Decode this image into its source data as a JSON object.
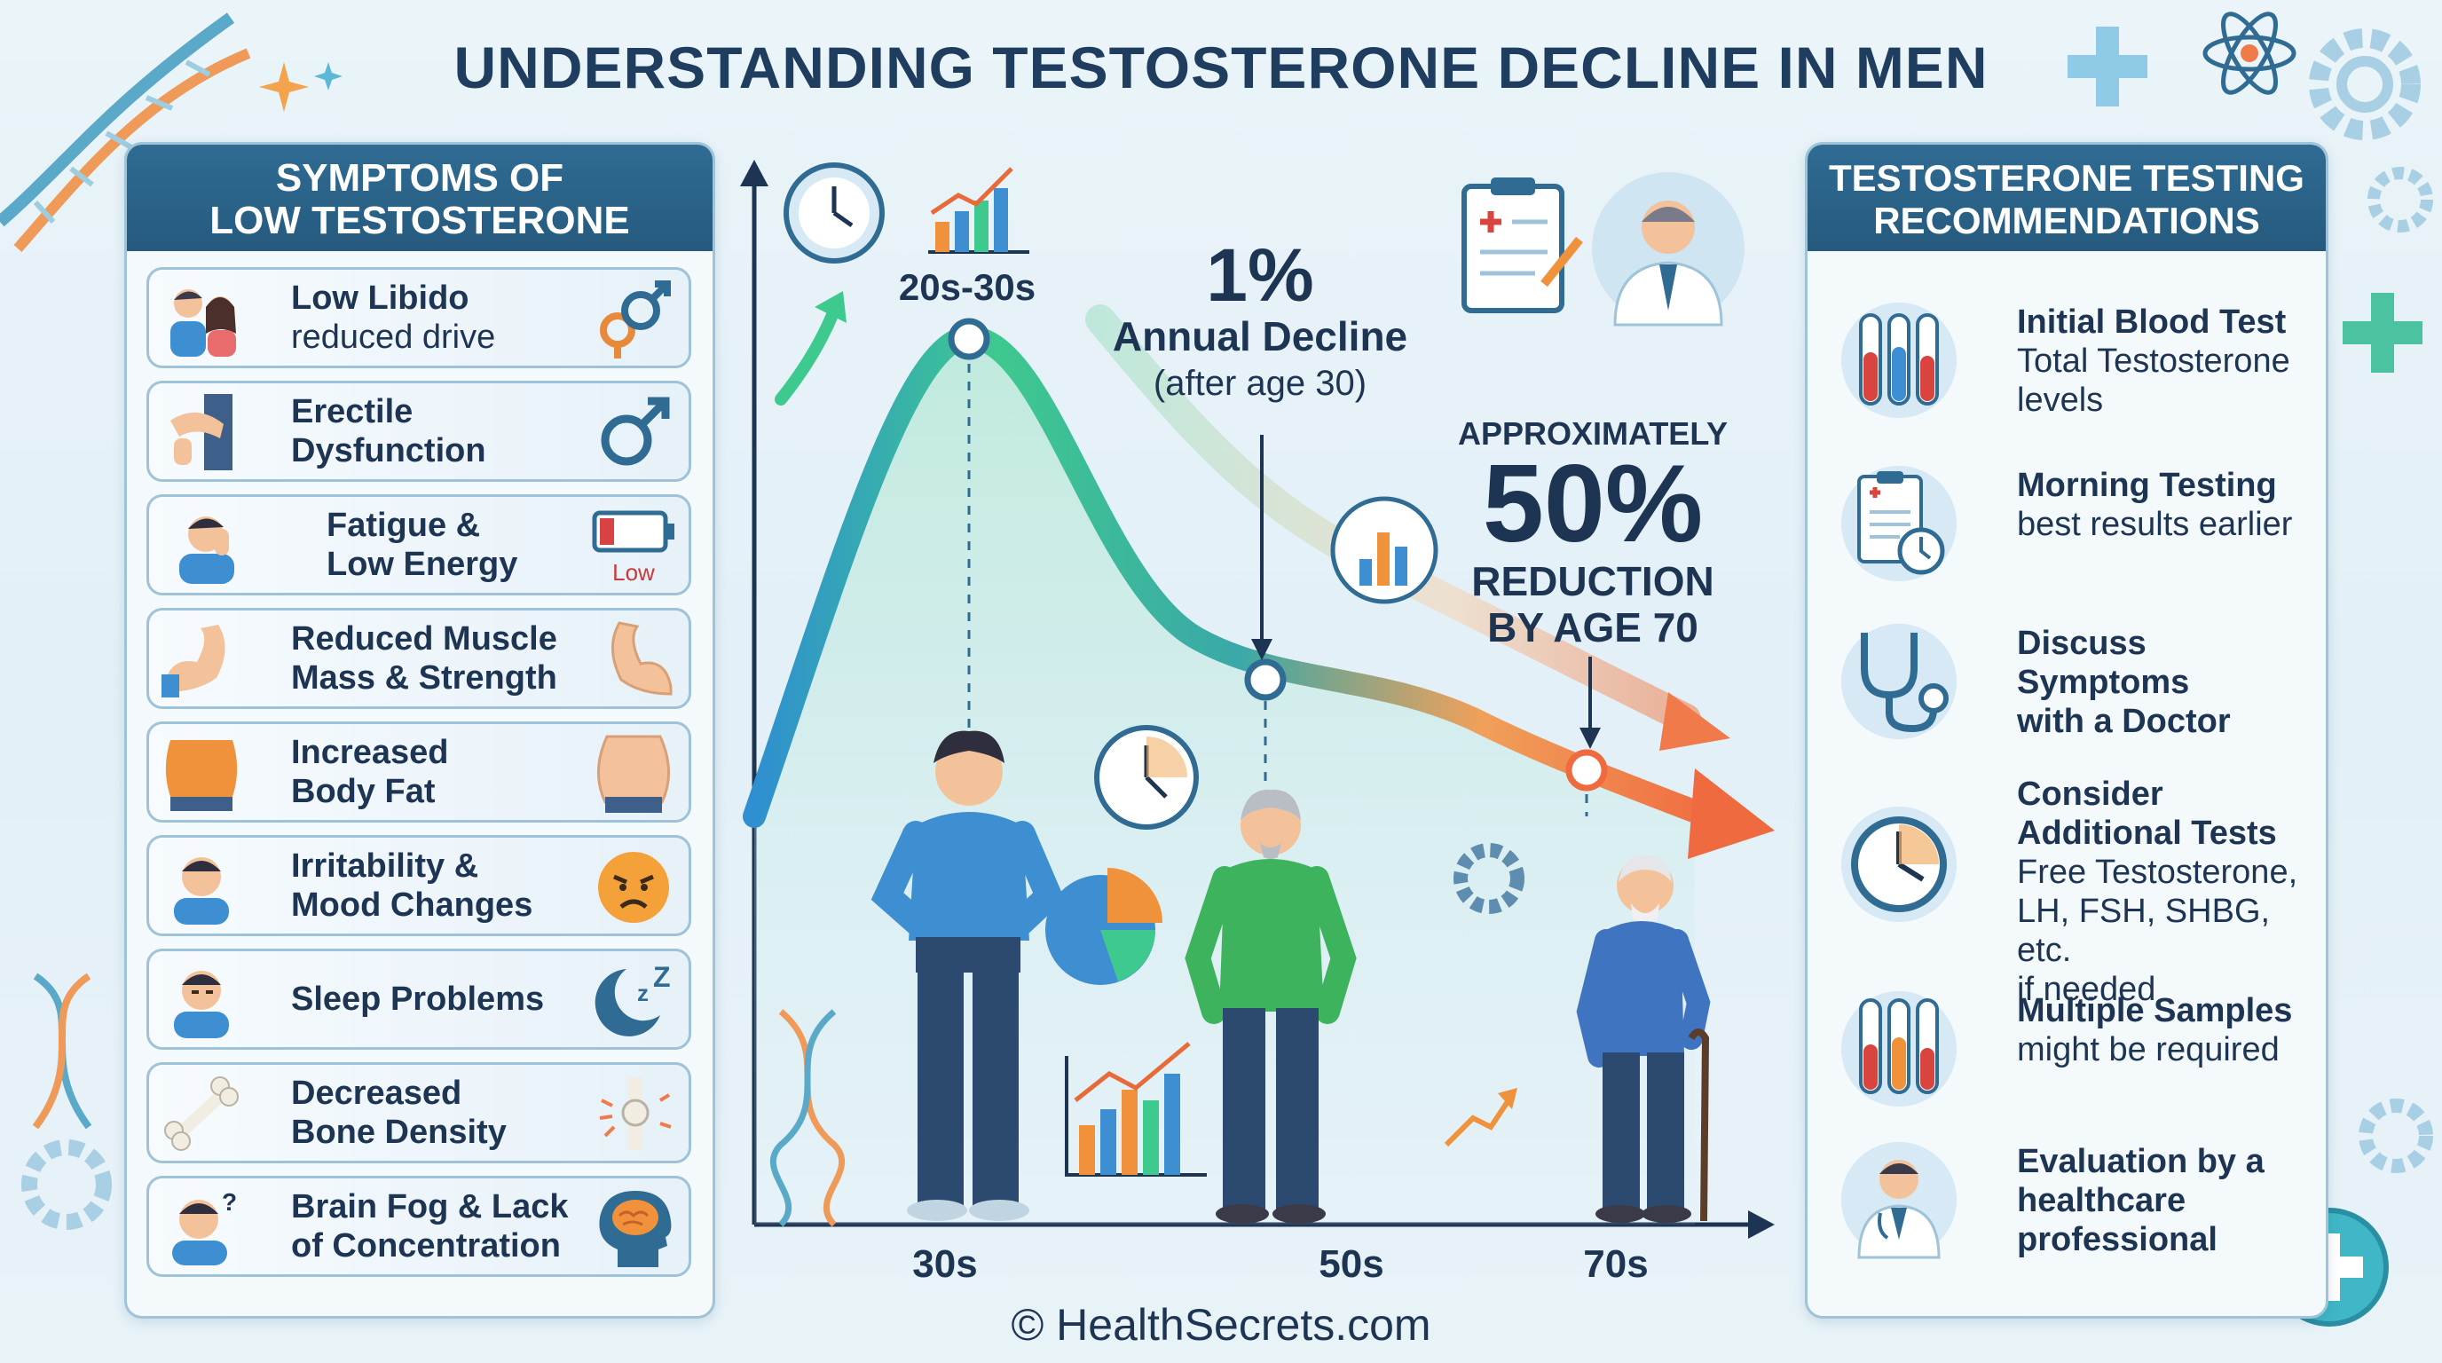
{
  "title": "UNDERSTANDING TESTOSTERONE DECLINE IN MEN",
  "symptoms_panel": {
    "header_line1": "SYMPTOMS OF",
    "header_line2": "LOW TESTOSTERONE",
    "items": [
      {
        "line1": "Low Libido",
        "line2": "reduced drive",
        "icon": "male-female-symbol-icon"
      },
      {
        "line1": "Erectile",
        "line2": "Dysfunction",
        "icon": "male-symbol-icon"
      },
      {
        "line1": "Fatigue &",
        "line2": "Low Energy",
        "icon": "low-battery-icon",
        "badge": "Low"
      },
      {
        "line1": "Reduced Muscle",
        "line2": "Mass & Strength",
        "icon": "flexed-arm-icon"
      },
      {
        "line1": "Increased",
        "line2": "Body Fat",
        "icon": "belly-icon"
      },
      {
        "line1": "Irritability &",
        "line2": "Mood Changes",
        "icon": "angry-face-icon"
      },
      {
        "line1": "Sleep Problems",
        "line2": "",
        "icon": "moon-zz-icon"
      },
      {
        "line1": "Decreased",
        "line2": "Bone Density",
        "icon": "joint-icon"
      },
      {
        "line1": "Brain Fog & Lack",
        "line2": "of Concentration",
        "icon": "brain-head-icon"
      }
    ]
  },
  "chart": {
    "peak_label": "20s-30s",
    "annual_pct": "1%",
    "annual_label": "Annual Decline",
    "annual_note": "(after age 30)",
    "approx": "APPROXIMATELY",
    "reduction_pct": "50%",
    "reduction_line1": "REDUCTION",
    "reduction_line2": "BY AGE 70",
    "x_labels": [
      "30s",
      "50s",
      "70s"
    ]
  },
  "recommendations_panel": {
    "header_line1": "TESTOSTERONE TESTING",
    "header_line2": "RECOMMENDATIONS",
    "items": [
      {
        "title": "Initial Blood Test",
        "lines": [
          "Total Testosterone",
          "levels"
        ],
        "icon": "test-tubes-icon"
      },
      {
        "title": "Morning Testing",
        "lines": [
          "best results earlier"
        ],
        "icon": "clipboard-clock-icon"
      },
      {
        "title": "Discuss Symptoms",
        "title2": "with a Doctor",
        "lines": [],
        "icon": "stethoscope-icon"
      },
      {
        "title": "Consider",
        "title2": "Additional Tests",
        "lines": [
          "Free Testosterone,",
          "LH, FSH, SHBG, etc.",
          "if needed"
        ],
        "icon": "clock-icon"
      },
      {
        "title": "Multiple Samples",
        "lines": [
          "might be required"
        ],
        "icon": "test-tubes-icon"
      },
      {
        "title": "Evaluation by a",
        "title2": "healthcare",
        "title3": "professional",
        "lines": [],
        "icon": "doctor-icon"
      }
    ]
  },
  "footer": "© HealthSecrets.com",
  "colors": {
    "header_blue": "#2f6b93",
    "curve_green": "#3ec98f",
    "curve_blue": "#2f8fd0",
    "curve_orange": "#f07a4a"
  }
}
